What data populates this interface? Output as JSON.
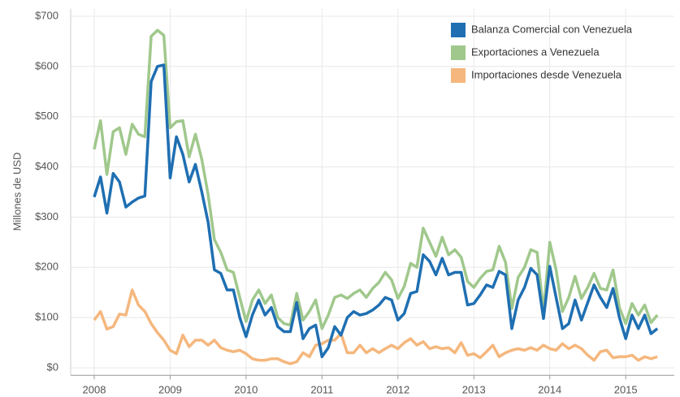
{
  "chart_data": {
    "type": "line",
    "y_label": "Millones de USD",
    "x": [
      2008,
      2008.083,
      2008.167,
      2008.25,
      2008.333,
      2008.417,
      2008.5,
      2008.583,
      2008.667,
      2008.75,
      2008.833,
      2008.917,
      2009,
      2009.083,
      2009.167,
      2009.25,
      2009.333,
      2009.417,
      2009.5,
      2009.583,
      2009.667,
      2009.75,
      2009.833,
      2009.917,
      2010,
      2010.083,
      2010.167,
      2010.25,
      2010.333,
      2010.417,
      2010.5,
      2010.583,
      2010.667,
      2010.75,
      2010.833,
      2010.917,
      2011,
      2011.083,
      2011.167,
      2011.25,
      2011.333,
      2011.417,
      2011.5,
      2011.583,
      2011.667,
      2011.75,
      2011.833,
      2011.917,
      2012,
      2012.083,
      2012.167,
      2012.25,
      2012.333,
      2012.417,
      2012.5,
      2012.583,
      2012.667,
      2012.75,
      2012.833,
      2012.917,
      2013,
      2013.083,
      2013.167,
      2013.25,
      2013.333,
      2013.417,
      2013.5,
      2013.583,
      2013.667,
      2013.75,
      2013.833,
      2013.917,
      2014,
      2014.083,
      2014.167,
      2014.25,
      2014.333,
      2014.417,
      2014.5,
      2014.583,
      2014.667,
      2014.75,
      2014.833,
      2014.917,
      2015,
      2015.083,
      2015.167,
      2015.25,
      2015.333,
      2015.417
    ],
    "series": [
      {
        "name": "Balanza Comercial con Venezuela",
        "color": "#1f6fb2",
        "values": [
          340,
          380,
          308,
          387,
          370,
          320,
          330,
          338,
          342,
          570,
          600,
          603,
          378,
          460,
          425,
          370,
          405,
          350,
          290,
          195,
          188,
          155,
          155,
          100,
          62,
          105,
          135,
          105,
          120,
          82,
          72,
          72,
          130,
          58,
          78,
          85,
          22,
          40,
          82,
          65,
          100,
          112,
          105,
          108,
          115,
          125,
          140,
          135,
          95,
          108,
          148,
          152,
          225,
          212,
          185,
          218,
          185,
          190,
          190,
          125,
          128,
          145,
          165,
          160,
          192,
          185,
          78,
          135,
          160,
          198,
          185,
          98,
          202,
          140,
          78,
          88,
          135,
          95,
          130,
          165,
          140,
          120,
          158,
          100,
          58,
          105,
          78,
          105,
          68,
          78
        ]
      },
      {
        "name": "Exportaciones a Venezuela",
        "color": "#a0c88c",
        "values": [
          435,
          492,
          385,
          470,
          478,
          425,
          485,
          465,
          460,
          660,
          672,
          662,
          478,
          490,
          492,
          420,
          465,
          415,
          345,
          255,
          230,
          195,
          190,
          140,
          92,
          135,
          155,
          128,
          145,
          100,
          88,
          85,
          148,
          95,
          112,
          135,
          78,
          105,
          140,
          145,
          138,
          148,
          155,
          140,
          158,
          170,
          190,
          175,
          138,
          162,
          208,
          200,
          278,
          250,
          222,
          260,
          225,
          235,
          220,
          172,
          160,
          178,
          192,
          195,
          242,
          210,
          118,
          180,
          200,
          235,
          230,
          112,
          250,
          195,
          112,
          140,
          182,
          138,
          160,
          188,
          158,
          155,
          195,
          120,
          88,
          128,
          105,
          125,
          90,
          105
        ]
      },
      {
        "name": "Importaciones desde Venezuela",
        "color": "#f5b77d",
        "values": [
          95,
          112,
          77,
          82,
          107,
          105,
          155,
          125,
          112,
          88,
          70,
          55,
          35,
          28,
          65,
          42,
          55,
          55,
          45,
          55,
          40,
          35,
          32,
          35,
          28,
          18,
          15,
          15,
          18,
          18,
          12,
          8,
          12,
          30,
          22,
          45,
          48,
          55,
          55,
          68,
          30,
          30,
          45,
          30,
          38,
          30,
          38,
          45,
          38,
          50,
          58,
          45,
          52,
          38,
          42,
          38,
          40,
          30,
          50,
          25,
          28,
          20,
          32,
          45,
          22,
          30,
          35,
          38,
          35,
          40,
          35,
          45,
          38,
          35,
          48,
          38,
          45,
          38,
          25,
          15,
          32,
          35,
          20,
          22,
          22,
          25,
          15,
          22,
          18,
          22
        ]
      }
    ],
    "xlim": [
      2007.69,
      2015.64
    ],
    "xticks": [
      2008,
      2009,
      2010,
      2011,
      2012,
      2013,
      2014,
      2015
    ],
    "ylim": [
      -15,
      715
    ],
    "yticks": [
      {
        "value": 0,
        "label": "$0"
      },
      {
        "value": 100,
        "label": "$100"
      },
      {
        "value": 200,
        "label": "$200"
      },
      {
        "value": 300,
        "label": "$300"
      },
      {
        "value": 400,
        "label": "$400"
      },
      {
        "value": 500,
        "label": "$500"
      },
      {
        "value": 600,
        "label": "$600"
      },
      {
        "value": 700,
        "label": "$700"
      }
    ],
    "grid": true,
    "legend": "top-right"
  }
}
